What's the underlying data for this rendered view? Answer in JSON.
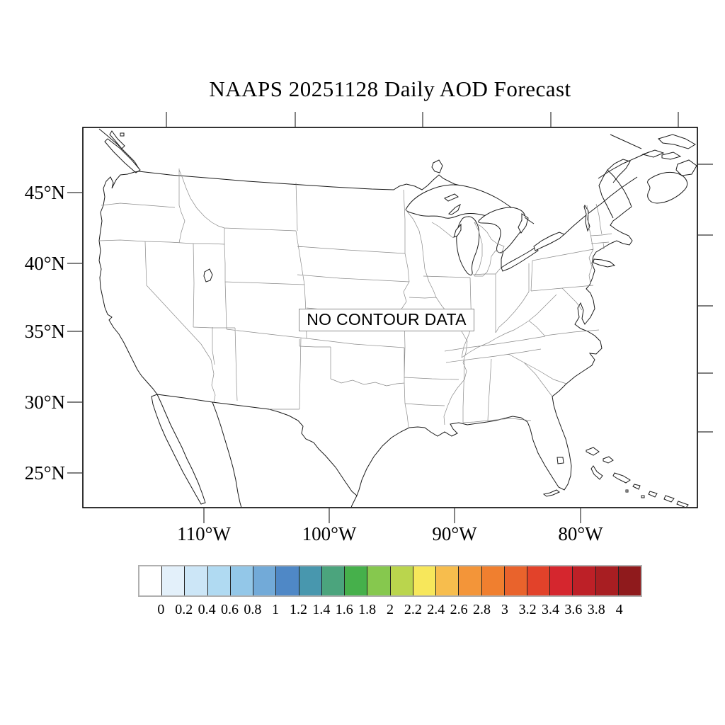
{
  "title": "NAAPS 20251128 Daily AOD Forecast",
  "map": {
    "no_data_label": "NO CONTOUR DATA",
    "lat_tick_labels": [
      "45°N",
      "40°N",
      "35°N",
      "30°N",
      "25°N"
    ],
    "lon_tick_labels": [
      "110°W",
      "100°W",
      "90°W",
      "80°W"
    ]
  },
  "colorbar": {
    "tick_labels": [
      "0",
      "0.2",
      "0.4",
      "0.6",
      "0.8",
      "1",
      "1.2",
      "1.4",
      "1.6",
      "1.8",
      "2",
      "2.2",
      "2.4",
      "2.6",
      "2.8",
      "3",
      "3.2",
      "3.4",
      "3.6",
      "3.8",
      "4"
    ],
    "cell_colors": [
      "#ffffff",
      "#e3f0fa",
      "#cce6f7",
      "#b0daf2",
      "#93c7e8",
      "#72aad8",
      "#4f88c6",
      "#4897ae",
      "#4ba47d",
      "#46b04b",
      "#86c84e",
      "#bad54d",
      "#f7e75b",
      "#f7bd4d",
      "#f39539",
      "#f07f2f",
      "#e9632c",
      "#e2422a",
      "#d5262e",
      "#bd2027",
      "#a81e22",
      "#8f1a1c"
    ]
  }
}
